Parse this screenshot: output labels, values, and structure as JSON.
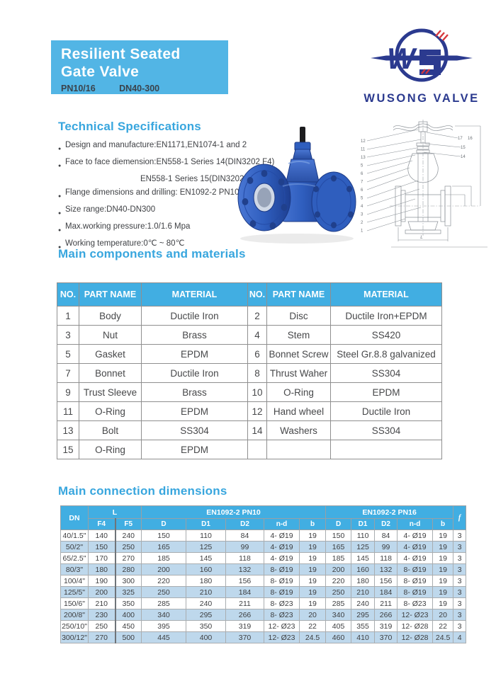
{
  "header": {
    "title_line1": "Resilient Seated",
    "title_line2": "Gate Valve",
    "subtitle_left": "PN10/16",
    "subtitle_right": "DN40-300",
    "box_color": "#52b5e5"
  },
  "logo": {
    "company": "WUSONG VALVE",
    "monogram": "W",
    "navy": "#2b3a8f",
    "red": "#d6373c"
  },
  "specs": {
    "heading": "Technical Specifications",
    "items": [
      {
        "bullet": "●",
        "text": "Design and manufacture:EN1171,EN1074-1 and 2",
        "indent": false
      },
      {
        "bullet": "●",
        "text": "Face to face diemension:EN558-1 Series 14(DIN3202 F4)",
        "indent": false
      },
      {
        "bullet": "",
        "text": "EN558-1 Series 15(DIN3202 F5)",
        "indent": true
      },
      {
        "bullet": "●",
        "text": "Flange dimensions and drilling: EN1092-2 PN10/16",
        "indent": false
      },
      {
        "bullet": "●",
        "text": "Size range:DN40-DN300",
        "indent": false
      },
      {
        "bullet": "●",
        "text": "Max.working pressure:1.0/1.6 Mpa",
        "indent": false
      },
      {
        "bullet": "●",
        "text": "Working temperature:0℃ ~ 80℃",
        "indent": false
      }
    ]
  },
  "components": {
    "heading": "Main components and materials",
    "col_headers": [
      "NO.",
      "PART NAME",
      "MATERIAL",
      "NO.",
      "PART NAME",
      "MATERIAL"
    ],
    "rows": [
      [
        "1",
        "Body",
        "Ductile Iron",
        "2",
        "Disc",
        "Ductile Iron+EPDM"
      ],
      [
        "3",
        "Nut",
        "Brass",
        "4",
        "Stem",
        "SS420"
      ],
      [
        "5",
        "Gasket",
        "EPDM",
        "6",
        "Bonnet Screw",
        "Steel Gr.8.8 galvanized"
      ],
      [
        "7",
        "Bonnet",
        "Ductile Iron",
        "8",
        "Thrust Waher",
        "SS304"
      ],
      [
        "9",
        "Trust Sleeve",
        "Brass",
        "10",
        "O-Ring",
        "EPDM"
      ],
      [
        "11",
        "O-Ring",
        "EPDM",
        "12",
        "Hand wheel",
        "Ductile Iron"
      ],
      [
        "13",
        "Bolt",
        "SS304",
        "14",
        "Washers",
        "SS304"
      ],
      [
        "15",
        "O-Ring",
        "EPDM",
        "",
        "",
        ""
      ]
    ]
  },
  "dimensions": {
    "heading": "Main connection dimensions",
    "group_headers": {
      "dn": "DN",
      "l": "L",
      "pn10": "EN1092-2 PN10",
      "pn16": "EN1092-2 PN16",
      "f": "f"
    },
    "sub_headers": [
      "F4",
      "F5",
      "D",
      "D1",
      "D2",
      "n-d",
      "b",
      "D",
      "D1",
      "D2",
      "n-d",
      "b"
    ],
    "rows": [
      [
        "40/1.5\"",
        "140",
        "240",
        "150",
        "110",
        "84",
        "4- Ø19",
        "19",
        "150",
        "110",
        "84",
        "4- Ø19",
        "19",
        "3"
      ],
      [
        "50/2\"",
        "150",
        "250",
        "165",
        "125",
        "99",
        "4- Ø19",
        "19",
        "165",
        "125",
        "99",
        "4- Ø19",
        "19",
        "3"
      ],
      [
        "65/2.5\"",
        "170",
        "270",
        "185",
        "145",
        "118",
        "4- Ø19",
        "19",
        "185",
        "145",
        "118",
        "4- Ø19",
        "19",
        "3"
      ],
      [
        "80/3\"",
        "180",
        "280",
        "200",
        "160",
        "132",
        "8- Ø19",
        "19",
        "200",
        "160",
        "132",
        "8- Ø19",
        "19",
        "3"
      ],
      [
        "100/4\"",
        "190",
        "300",
        "220",
        "180",
        "156",
        "8- Ø19",
        "19",
        "220",
        "180",
        "156",
        "8- Ø19",
        "19",
        "3"
      ],
      [
        "125/5\"",
        "200",
        "325",
        "250",
        "210",
        "184",
        "8- Ø19",
        "19",
        "250",
        "210",
        "184",
        "8- Ø19",
        "19",
        "3"
      ],
      [
        "150/6\"",
        "210",
        "350",
        "285",
        "240",
        "211",
        "8- Ø23",
        "19",
        "285",
        "240",
        "211",
        "8- Ø23",
        "19",
        "3"
      ],
      [
        "200/8\"",
        "230",
        "400",
        "340",
        "295",
        "266",
        "8- Ø23",
        "20",
        "340",
        "295",
        "266",
        "12- Ø23",
        "20",
        "3"
      ],
      [
        "250/10\"",
        "250",
        "450",
        "395",
        "350",
        "319",
        "12- Ø23",
        "22",
        "405",
        "355",
        "319",
        "12- Ø28",
        "22",
        "3"
      ],
      [
        "300/12\"",
        "270",
        "500",
        "445",
        "400",
        "370",
        "12- Ø23",
        "24.5",
        "460",
        "410",
        "370",
        "12- Ø28",
        "24.5",
        "4"
      ]
    ]
  },
  "drawing": {
    "callouts_left": [
      "12",
      "11",
      "13",
      "5",
      "6",
      "7",
      "6",
      "5",
      "4",
      "3",
      "2",
      "1"
    ],
    "callouts_right": [
      "17",
      "16",
      "15",
      "14"
    ],
    "dim_label": "L"
  }
}
